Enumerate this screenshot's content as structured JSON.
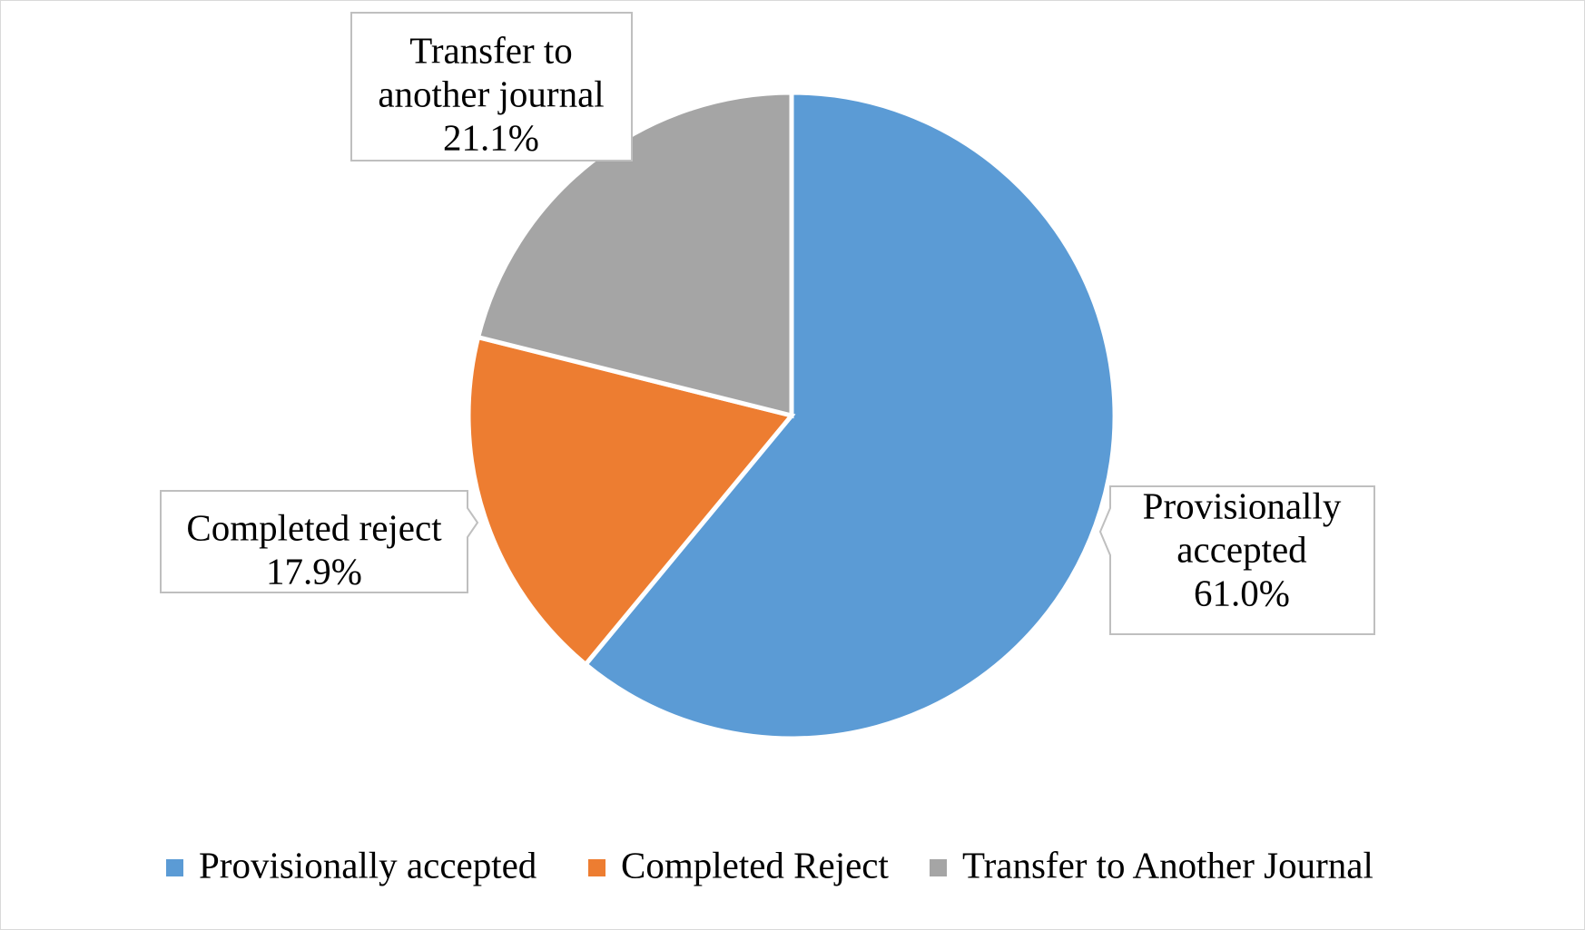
{
  "chart_data": {
    "type": "pie",
    "categories": [
      "Provisionally accepted",
      "Completed Reject",
      "Transfer to Another Journal"
    ],
    "values": [
      61.0,
      17.9,
      21.1
    ],
    "colors": [
      "#5b9bd5",
      "#ed7d31",
      "#a5a5a5"
    ],
    "data_labels": [
      {
        "lines": [
          "Provisionally",
          "accepted",
          "61.0%"
        ]
      },
      {
        "lines": [
          "Completed reject",
          "17.9%"
        ]
      },
      {
        "lines": [
          "Transfer to",
          "another journal",
          "21.1%"
        ]
      }
    ],
    "legend_position": "bottom"
  }
}
